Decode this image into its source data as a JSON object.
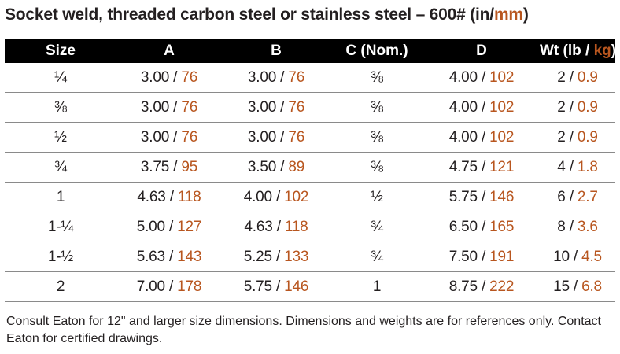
{
  "title": {
    "text": "Socket weld, threaded carbon steel or stainless steel – 600# (in/",
    "accent": "mm",
    "suffix": ")"
  },
  "table": {
    "headers": [
      "Size",
      "A",
      "B",
      "C (Nom.)",
      "D"
    ],
    "wt_header": {
      "prefix": "Wt (lb / ",
      "accent": "kg",
      "suffix": ")"
    },
    "separator": " / ",
    "rows": [
      {
        "size": "¼",
        "a_in": "3.00",
        "a_mm": "76",
        "b_in": "3.00",
        "b_mm": "76",
        "c": "⅜",
        "d_in": "4.00",
        "d_mm": "102",
        "wt_lb": "2",
        "wt_kg": "0.9"
      },
      {
        "size": "⅜",
        "a_in": "3.00",
        "a_mm": "76",
        "b_in": "3.00",
        "b_mm": "76",
        "c": "⅜",
        "d_in": "4.00",
        "d_mm": "102",
        "wt_lb": "2",
        "wt_kg": "0.9"
      },
      {
        "size": "½",
        "a_in": "3.00",
        "a_mm": "76",
        "b_in": "3.00",
        "b_mm": "76",
        "c": "⅜",
        "d_in": "4.00",
        "d_mm": "102",
        "wt_lb": "2",
        "wt_kg": "0.9"
      },
      {
        "size": "¾",
        "a_in": "3.75",
        "a_mm": "95",
        "b_in": "3.50",
        "b_mm": "89",
        "c": "⅜",
        "d_in": "4.75",
        "d_mm": "121",
        "wt_lb": "4",
        "wt_kg": "1.8"
      },
      {
        "size": "1",
        "a_in": "4.63",
        "a_mm": "118",
        "b_in": "4.00",
        "b_mm": "102",
        "c": "½",
        "d_in": "5.75",
        "d_mm": "146",
        "wt_lb": "6",
        "wt_kg": "2.7"
      },
      {
        "size": "1-¼",
        "a_in": "5.00",
        "a_mm": "127",
        "b_in": "4.63",
        "b_mm": "118",
        "c": "¾",
        "d_in": "6.50",
        "d_mm": "165",
        "wt_lb": "8",
        "wt_kg": "3.6"
      },
      {
        "size": "1-½",
        "a_in": "5.63",
        "a_mm": "143",
        "b_in": "5.25",
        "b_mm": "133",
        "c": "¾",
        "d_in": "7.50",
        "d_mm": "191",
        "wt_lb": "10",
        "wt_kg": "4.5"
      },
      {
        "size": "2",
        "a_in": "7.00",
        "a_mm": "178",
        "b_in": "5.75",
        "b_mm": "146",
        "c": "1",
        "d_in": "8.75",
        "d_mm": "222",
        "wt_lb": "15",
        "wt_kg": "6.8"
      }
    ]
  },
  "note": "Consult Eaton for 12\" and larger size dimensions. Dimensions and weights are for references only. Contact Eaton for certified drawings.",
  "colors": {
    "accent": "#b8561f",
    "header_bg": "#000000",
    "text": "#231f20"
  }
}
